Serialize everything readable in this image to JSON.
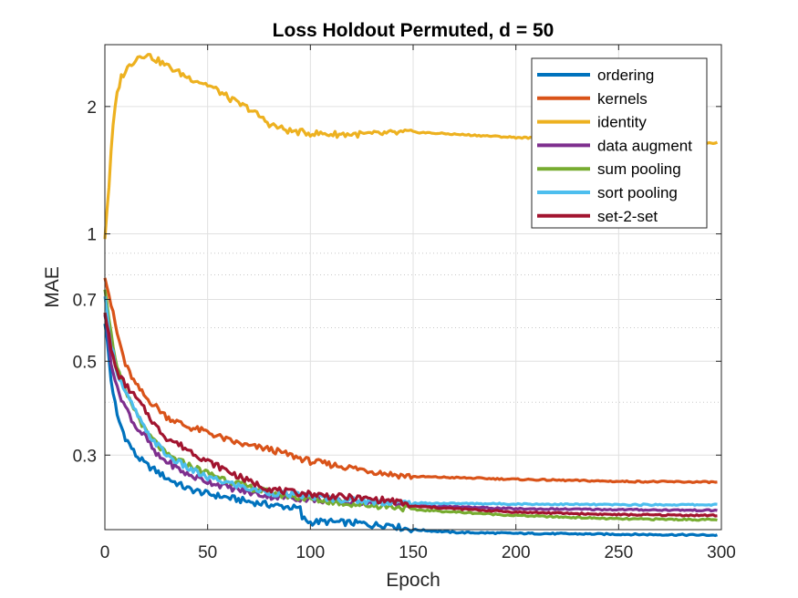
{
  "chart_data": {
    "type": "line",
    "title": "Loss Holdout Permuted, d = 50",
    "xlabel": "Epoch",
    "ylabel": "MAE",
    "xlim": [
      0,
      300
    ],
    "ylim": [
      0.2,
      2.8
    ],
    "yscale": "log",
    "grid": true,
    "legend_position": "top-right",
    "x_ticks": [
      0,
      50,
      100,
      150,
      200,
      250,
      300
    ],
    "x_tick_labels": [
      "0",
      "50",
      "100",
      "150",
      "200",
      "250",
      "300"
    ],
    "y_ticks": [
      0.3,
      0.5,
      0.7,
      1,
      2
    ],
    "y_tick_labels": [
      "0.3",
      "0.5",
      "0.7",
      "1",
      "2"
    ],
    "series": [
      {
        "name": "ordering",
        "color": "#0072BD",
        "points": [
          [
            0,
            0.62
          ],
          [
            3,
            0.45
          ],
          [
            6,
            0.37
          ],
          [
            10,
            0.33
          ],
          [
            15,
            0.3
          ],
          [
            20,
            0.285
          ],
          [
            30,
            0.265
          ],
          [
            40,
            0.25
          ],
          [
            50,
            0.243
          ],
          [
            60,
            0.238
          ],
          [
            70,
            0.233
          ],
          [
            80,
            0.229
          ],
          [
            90,
            0.226
          ],
          [
            95,
            0.224
          ],
          [
            96,
            0.213
          ],
          [
            100,
            0.208
          ],
          [
            105,
            0.209
          ],
          [
            125,
            0.207
          ],
          [
            130,
            0.205
          ],
          [
            140,
            0.206
          ],
          [
            142,
            0.203
          ],
          [
            150,
            0.2
          ],
          [
            170,
            0.197
          ],
          [
            200,
            0.196
          ],
          [
            250,
            0.195
          ],
          [
            300,
            0.194
          ]
        ]
      },
      {
        "name": "kernels",
        "color": "#D95319",
        "points": [
          [
            0,
            0.8
          ],
          [
            3,
            0.68
          ],
          [
            6,
            0.58
          ],
          [
            10,
            0.49
          ],
          [
            15,
            0.44
          ],
          [
            20,
            0.41
          ],
          [
            25,
            0.39
          ],
          [
            30,
            0.37
          ],
          [
            40,
            0.35
          ],
          [
            50,
            0.34
          ],
          [
            60,
            0.325
          ],
          [
            70,
            0.315
          ],
          [
            80,
            0.31
          ],
          [
            90,
            0.3
          ],
          [
            100,
            0.29
          ],
          [
            110,
            0.285
          ],
          [
            120,
            0.28
          ],
          [
            130,
            0.275
          ],
          [
            140,
            0.27
          ],
          [
            150,
            0.267
          ],
          [
            200,
            0.263
          ],
          [
            250,
            0.26
          ],
          [
            300,
            0.259
          ]
        ]
      },
      {
        "name": "identity",
        "color": "#EDB120",
        "points": [
          [
            0,
            0.98
          ],
          [
            2,
            1.3
          ],
          [
            4,
            1.8
          ],
          [
            6,
            2.15
          ],
          [
            8,
            2.35
          ],
          [
            12,
            2.5
          ],
          [
            16,
            2.62
          ],
          [
            20,
            2.66
          ],
          [
            25,
            2.58
          ],
          [
            30,
            2.5
          ],
          [
            35,
            2.42
          ],
          [
            40,
            2.35
          ],
          [
            45,
            2.3
          ],
          [
            50,
            2.25
          ],
          [
            55,
            2.18
          ],
          [
            60,
            2.1
          ],
          [
            65,
            2.03
          ],
          [
            70,
            1.98
          ],
          [
            75,
            1.9
          ],
          [
            80,
            1.82
          ],
          [
            85,
            1.78
          ],
          [
            90,
            1.75
          ],
          [
            100,
            1.73
          ],
          [
            110,
            1.72
          ],
          [
            120,
            1.72
          ],
          [
            130,
            1.72
          ],
          [
            140,
            1.73
          ],
          [
            150,
            1.74
          ],
          [
            160,
            1.73
          ],
          [
            180,
            1.71
          ],
          [
            200,
            1.69
          ],
          [
            220,
            1.68
          ],
          [
            240,
            1.66
          ],
          [
            260,
            1.65
          ],
          [
            280,
            1.64
          ],
          [
            300,
            1.64
          ]
        ]
      },
      {
        "name": "data augment",
        "color": "#7E2F8E",
        "points": [
          [
            0,
            0.65
          ],
          [
            3,
            0.5
          ],
          [
            6,
            0.43
          ],
          [
            10,
            0.39
          ],
          [
            15,
            0.35
          ],
          [
            20,
            0.33
          ],
          [
            25,
            0.3
          ],
          [
            30,
            0.29
          ],
          [
            40,
            0.27
          ],
          [
            50,
            0.26
          ],
          [
            60,
            0.252
          ],
          [
            70,
            0.245
          ],
          [
            80,
            0.24
          ],
          [
            90,
            0.238
          ],
          [
            100,
            0.236
          ],
          [
            110,
            0.234
          ],
          [
            120,
            0.232
          ],
          [
            130,
            0.232
          ],
          [
            140,
            0.232
          ],
          [
            150,
            0.228
          ],
          [
            200,
            0.224
          ],
          [
            250,
            0.223
          ],
          [
            300,
            0.222
          ]
        ]
      },
      {
        "name": "sum pooling",
        "color": "#77AC30",
        "points": [
          [
            0,
            0.75
          ],
          [
            3,
            0.58
          ],
          [
            6,
            0.48
          ],
          [
            10,
            0.42
          ],
          [
            15,
            0.38
          ],
          [
            20,
            0.34
          ],
          [
            25,
            0.32
          ],
          [
            30,
            0.3
          ],
          [
            40,
            0.285
          ],
          [
            50,
            0.272
          ],
          [
            60,
            0.262
          ],
          [
            70,
            0.252
          ],
          [
            80,
            0.245
          ],
          [
            90,
            0.24
          ],
          [
            100,
            0.236
          ],
          [
            110,
            0.233
          ],
          [
            120,
            0.23
          ],
          [
            130,
            0.228
          ],
          [
            140,
            0.227
          ],
          [
            150,
            0.223
          ],
          [
            200,
            0.216
          ],
          [
            250,
            0.212
          ],
          [
            300,
            0.211
          ]
        ]
      },
      {
        "name": "sort pooling",
        "color": "#4DBEEE",
        "points": [
          [
            0,
            0.7
          ],
          [
            3,
            0.55
          ],
          [
            6,
            0.47
          ],
          [
            10,
            0.42
          ],
          [
            15,
            0.38
          ],
          [
            20,
            0.34
          ],
          [
            25,
            0.32
          ],
          [
            30,
            0.3
          ],
          [
            40,
            0.28
          ],
          [
            50,
            0.265
          ],
          [
            60,
            0.258
          ],
          [
            70,
            0.25
          ],
          [
            80,
            0.245
          ],
          [
            90,
            0.242
          ],
          [
            100,
            0.24
          ],
          [
            110,
            0.237
          ],
          [
            120,
            0.235
          ],
          [
            130,
            0.233
          ],
          [
            140,
            0.232
          ],
          [
            150,
            0.231
          ],
          [
            200,
            0.23
          ],
          [
            250,
            0.229
          ],
          [
            300,
            0.229
          ]
        ]
      },
      {
        "name": "set-2-set",
        "color": "#A2142F",
        "points": [
          [
            0,
            0.66
          ],
          [
            3,
            0.53
          ],
          [
            6,
            0.47
          ],
          [
            10,
            0.44
          ],
          [
            15,
            0.41
          ],
          [
            20,
            0.38
          ],
          [
            25,
            0.35
          ],
          [
            30,
            0.33
          ],
          [
            40,
            0.31
          ],
          [
            50,
            0.29
          ],
          [
            60,
            0.275
          ],
          [
            70,
            0.26
          ],
          [
            80,
            0.25
          ],
          [
            90,
            0.245
          ],
          [
            100,
            0.243
          ],
          [
            110,
            0.24
          ],
          [
            120,
            0.238
          ],
          [
            130,
            0.236
          ],
          [
            140,
            0.234
          ],
          [
            150,
            0.227
          ],
          [
            200,
            0.22
          ],
          [
            250,
            0.217
          ],
          [
            300,
            0.216
          ]
        ]
      }
    ]
  }
}
